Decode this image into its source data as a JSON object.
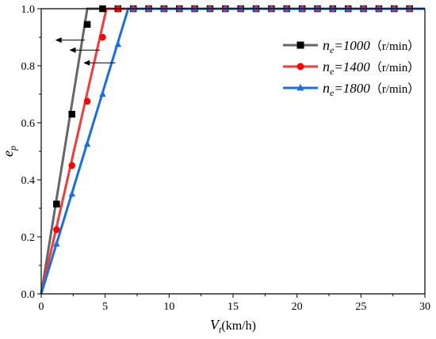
{
  "chart_data": {
    "type": "line",
    "title": "",
    "xlabel": {
      "main": "V",
      "sub": "t",
      "suffix": "(km/h)"
    },
    "ylabel": {
      "main": "e",
      "sub": "p"
    },
    "xlim": [
      0,
      30
    ],
    "ylim": [
      0,
      1.0
    ],
    "xticks": [
      0,
      5,
      10,
      15,
      20,
      25,
      30
    ],
    "yticks": [
      0.0,
      0.2,
      0.4,
      0.6,
      0.8,
      1.0
    ],
    "xtick_labels": [
      "0",
      "5",
      "10",
      "15",
      "20",
      "25",
      "30"
    ],
    "ytick_labels": [
      "0.0",
      "0.2",
      "0.4",
      "0.6",
      "0.8",
      "1.0"
    ],
    "grid": false,
    "legend_position": "top-right",
    "series": [
      {
        "legend_prefix": "n",
        "legend_sub": "e",
        "legend_value": "=1000",
        "legend_unit": "（r/min）",
        "color": "#666666",
        "marker": "square",
        "marker_color": "#000000",
        "line": [
          [
            0,
            0
          ],
          [
            3.6,
            1.0
          ],
          [
            30,
            1.0
          ]
        ],
        "markers": [
          [
            1.2,
            0.315
          ],
          [
            2.4,
            0.63
          ],
          [
            3.6,
            0.945
          ],
          [
            4.8,
            1.0
          ],
          [
            6.0,
            1.0
          ],
          [
            7.2,
            1.0
          ],
          [
            8.4,
            1.0
          ],
          [
            9.6,
            1.0
          ],
          [
            10.8,
            1.0
          ],
          [
            12.0,
            1.0
          ],
          [
            13.2,
            1.0
          ],
          [
            14.4,
            1.0
          ],
          [
            15.6,
            1.0
          ],
          [
            16.8,
            1.0
          ],
          [
            18.0,
            1.0
          ],
          [
            19.2,
            1.0
          ],
          [
            20.4,
            1.0
          ],
          [
            21.6,
            1.0
          ],
          [
            22.8,
            1.0
          ],
          [
            24.0,
            1.0
          ],
          [
            25.2,
            1.0
          ],
          [
            26.4,
            1.0
          ],
          [
            27.6,
            1.0
          ],
          [
            28.8,
            1.0
          ]
        ]
      },
      {
        "legend_prefix": "n",
        "legend_sub": "e",
        "legend_value": "=1400",
        "legend_unit": "（r/min）",
        "color": "#f03c3c",
        "marker": "circle",
        "marker_color": "#ff0000",
        "line": [
          [
            0,
            0
          ],
          [
            5.1,
            1.0
          ],
          [
            30,
            1.0
          ]
        ],
        "markers": [
          [
            1.2,
            0.225
          ],
          [
            2.4,
            0.45
          ],
          [
            3.6,
            0.675
          ],
          [
            4.8,
            0.9
          ],
          [
            6.0,
            1.0
          ],
          [
            7.2,
            1.0
          ],
          [
            8.4,
            1.0
          ],
          [
            9.6,
            1.0
          ],
          [
            10.8,
            1.0
          ],
          [
            12.0,
            1.0
          ],
          [
            13.2,
            1.0
          ],
          [
            14.4,
            1.0
          ],
          [
            15.6,
            1.0
          ],
          [
            16.8,
            1.0
          ],
          [
            18.0,
            1.0
          ],
          [
            19.2,
            1.0
          ],
          [
            20.4,
            1.0
          ],
          [
            21.6,
            1.0
          ],
          [
            22.8,
            1.0
          ],
          [
            24.0,
            1.0
          ],
          [
            25.2,
            1.0
          ],
          [
            26.4,
            1.0
          ],
          [
            27.6,
            1.0
          ],
          [
            28.8,
            1.0
          ]
        ]
      },
      {
        "legend_prefix": "n",
        "legend_sub": "e",
        "legend_value": "=1800",
        "legend_unit": "（r/min）",
        "color": "#1a6fe0",
        "marker": "triangle",
        "marker_color": "#1a6fe0",
        "line": [
          [
            0,
            0
          ],
          [
            6.8,
            1.0
          ],
          [
            30,
            1.0
          ]
        ],
        "markers": [
          [
            1.2,
            0.175
          ],
          [
            2.4,
            0.35
          ],
          [
            3.6,
            0.525
          ],
          [
            4.8,
            0.7
          ],
          [
            6.0,
            0.875
          ],
          [
            7.2,
            1.0
          ],
          [
            8.4,
            1.0
          ],
          [
            9.6,
            1.0
          ],
          [
            10.8,
            1.0
          ],
          [
            12.0,
            1.0
          ],
          [
            13.2,
            1.0
          ],
          [
            14.4,
            1.0
          ],
          [
            15.6,
            1.0
          ],
          [
            16.8,
            1.0
          ],
          [
            18.0,
            1.0
          ],
          [
            19.2,
            1.0
          ],
          [
            20.4,
            1.0
          ],
          [
            21.6,
            1.0
          ],
          [
            22.8,
            1.0
          ],
          [
            24.0,
            1.0
          ],
          [
            25.2,
            1.0
          ],
          [
            26.4,
            1.0
          ],
          [
            27.6,
            1.0
          ],
          [
            28.8,
            1.0
          ]
        ]
      }
    ],
    "annotations": {
      "arrows": [
        {
          "from": [
            3.4,
            0.89
          ],
          "to": [
            1.1,
            0.89
          ]
        },
        {
          "from": [
            4.6,
            0.855
          ],
          "to": [
            2.2,
            0.855
          ]
        },
        {
          "from": [
            5.8,
            0.81
          ],
          "to": [
            3.3,
            0.81
          ]
        }
      ]
    }
  }
}
